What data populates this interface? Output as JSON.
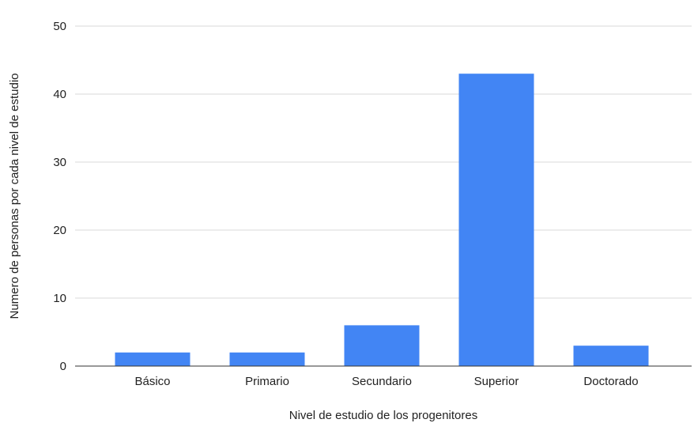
{
  "chart_data": {
    "type": "bar",
    "title": "",
    "xlabel": "Nivel de estudio de los progenitores",
    "ylabel": "Numero de personas por cada nivel de estudio",
    "categories": [
      "Básico",
      "Primario",
      "Secundario",
      "Superior",
      "Doctorado"
    ],
    "values": [
      2,
      2,
      6,
      43,
      3
    ],
    "ylim": [
      0,
      50
    ],
    "yticks": [
      0,
      10,
      20,
      30,
      40,
      50
    ],
    "grid": true,
    "legend": "none",
    "bar_color": "#4285f4"
  }
}
